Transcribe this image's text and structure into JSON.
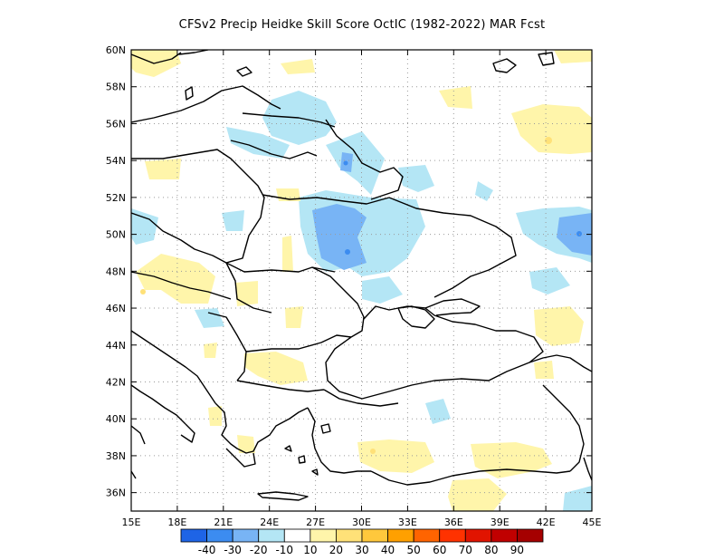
{
  "title": "CFSv2 Precip Heidke Skill Score OctIC (1982-2022) MAR Fcst",
  "map": {
    "lon_range": [
      15,
      45
    ],
    "lat_range": [
      35,
      60
    ],
    "x_tick_labels": [
      "15E",
      "18E",
      "21E",
      "24E",
      "27E",
      "30E",
      "33E",
      "36E",
      "39E",
      "42E",
      "45E"
    ],
    "y_tick_labels": [
      "36N",
      "38N",
      "40N",
      "42N",
      "44N",
      "46N",
      "48N",
      "50N",
      "52N",
      "54N",
      "56N",
      "58N",
      "60N"
    ],
    "grid": "dotted"
  },
  "colorbar": {
    "colors": [
      "#1e64e6",
      "#3c8cf0",
      "#78b4f5",
      "#b4e6f5",
      "#ffffff",
      "#fff5aa",
      "#ffe178",
      "#ffc83c",
      "#ffa000",
      "#ff6400",
      "#ff3200",
      "#e11400",
      "#c00000",
      "#a50000"
    ],
    "labels": [
      "-40",
      "-30",
      "-20",
      "-10",
      "10",
      "20",
      "30",
      "40",
      "50",
      "60",
      "70",
      "80",
      "90"
    ]
  },
  "shading_colors": {
    "negative_light": "#b4e6f5",
    "negative_mid": "#78b4f5",
    "negative_strong": "#3c8cf0",
    "positive_light": "#fff5aa",
    "positive_mid": "#ffe178"
  }
}
